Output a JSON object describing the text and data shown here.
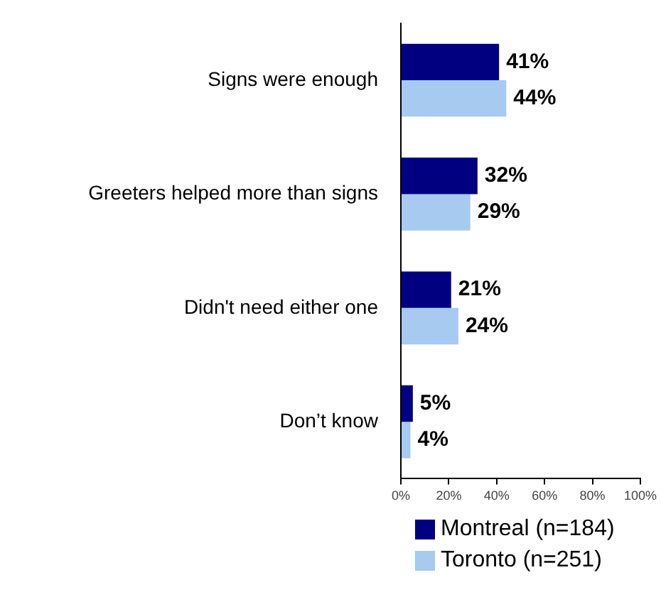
{
  "chart_data": {
    "type": "bar",
    "orientation": "horizontal",
    "categories": [
      "Signs were enough",
      "Greeters helped more than signs",
      "Didn't need either one",
      "Don’t know"
    ],
    "series": [
      {
        "name": "Montreal (n=184)",
        "color": "#000080",
        "values": [
          41,
          32,
          21,
          5
        ]
      },
      {
        "name": "Toronto (n=251)",
        "color": "#a6caf0",
        "values": [
          44,
          29,
          24,
          4
        ]
      }
    ],
    "xlim": [
      0,
      100
    ],
    "xticks": [
      {
        "value": 0,
        "label": "0%"
      },
      {
        "value": 20,
        "label": "20%"
      },
      {
        "value": 40,
        "label": "40%"
      },
      {
        "value": 60,
        "label": "60%"
      },
      {
        "value": 80,
        "label": "80%"
      },
      {
        "value": 100,
        "label": "100%"
      }
    ],
    "value_labels": [
      [
        "41%",
        "32%",
        "21%",
        "5%"
      ],
      [
        "44%",
        "29%",
        "24%",
        "4%"
      ]
    ],
    "grid": false,
    "legend": "bottom"
  }
}
